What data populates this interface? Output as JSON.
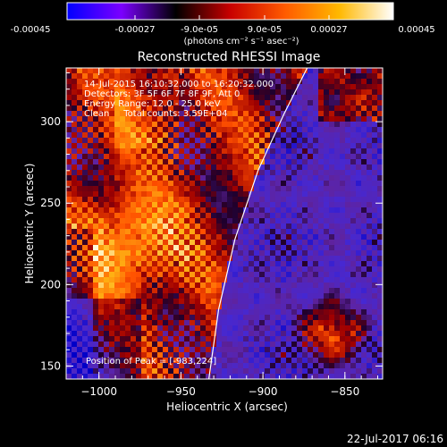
{
  "colorbar": {
    "ticks": [
      "-0.00045",
      "-0.00027",
      "-9.0e-05",
      "9.0e-05",
      "0.00027",
      "0.00045"
    ],
    "range": [
      -0.00045,
      0.00045
    ],
    "units": "(photons cm⁻² s⁻¹ asec⁻²)",
    "colors": [
      "#0000ff",
      "#7b00ff",
      "#000000",
      "#c80000",
      "#ff5a00",
      "#ffb800",
      "#ffffff"
    ]
  },
  "chart_data": {
    "type": "heatmap",
    "title": "Reconstructed RHESSI Image",
    "xlabel": "Heliocentric X (arcsec)",
    "ylabel": "Heliocentric Y (arcsec)",
    "xlim": [
      -1020,
      -827
    ],
    "ylim": [
      142,
      333
    ],
    "xticks": [
      -1000,
      -950,
      -900,
      -850
    ],
    "yticks": [
      150,
      200,
      250,
      300
    ],
    "grid": "off",
    "annotations": [
      "14-Jul-2015 16:10:32.000 to 16:20:32.000",
      "Detectors: 3F 5F 6F 7F 8F 9F, Att 0",
      "Energy Range: 12.0 - 25.0 keV",
      "Clean     Total counts: 3.59E+04",
      "Position of Peak = [-983,224]"
    ],
    "peak": [
      -983,
      224
    ],
    "limb": {
      "color": "#ffffff",
      "points": [
        [
          -933,
          142
        ],
        [
          -927,
          185
        ],
        [
          -917,
          228
        ],
        [
          -903,
          270
        ],
        [
          -887,
          305
        ],
        [
          -873,
          333
        ]
      ]
    }
  },
  "footer": {
    "timestamp": "22-Jul-2017 06:16"
  }
}
